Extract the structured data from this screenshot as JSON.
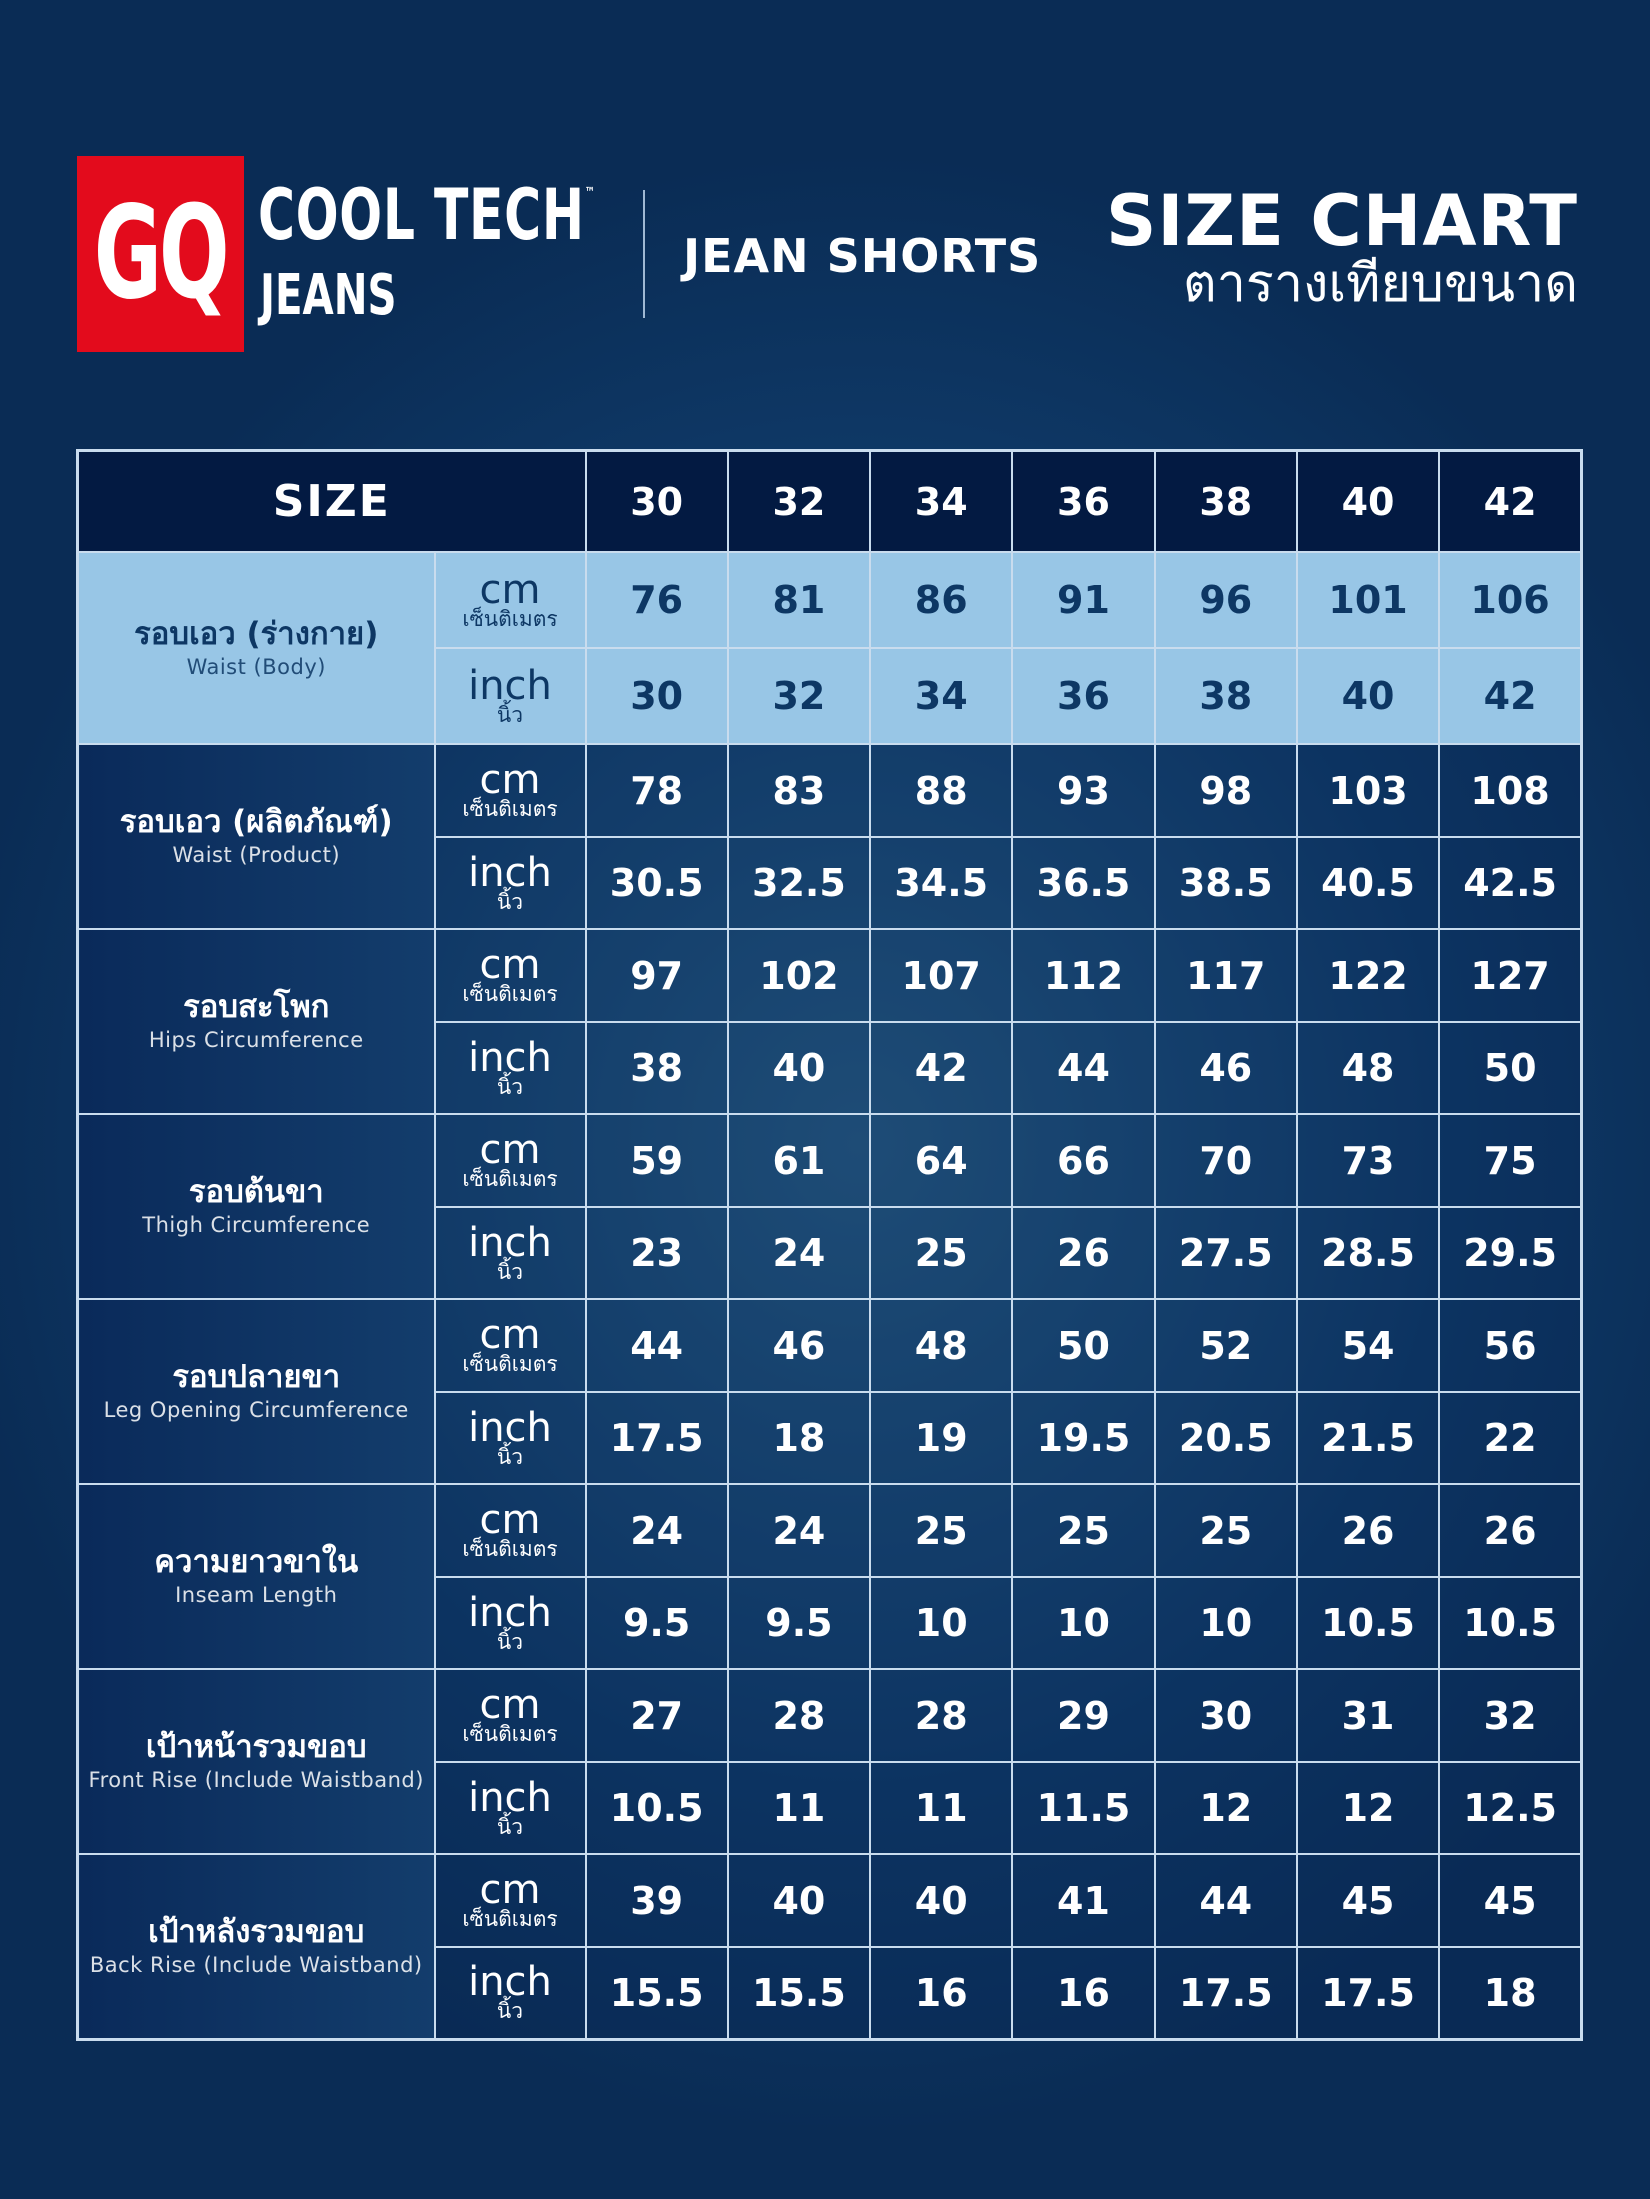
{
  "header": {
    "logo": {
      "text": "GQ",
      "bg_color": "#e30b1c"
    },
    "brand": {
      "name": "COOL TECH",
      "trademark": "™",
      "sub": "JEANS"
    },
    "product": "JEAN SHORTS",
    "title": "SIZE CHART",
    "subtitle_th": "ตารางเทียบขนาด"
  },
  "colors": {
    "background": "#0f3a68",
    "header_row": "#031a42",
    "highlight_row": "#98c6e6",
    "highlight_text": "#0d3764",
    "grid": "#c9dcee"
  },
  "chart_data": {
    "type": "table",
    "title": "SIZE CHART",
    "subtitle": "ตารางเทียบขนาด",
    "product": "JEAN SHORTS",
    "header_label": "SIZE",
    "sizes": [
      "30",
      "32",
      "34",
      "36",
      "38",
      "40",
      "42"
    ],
    "units": {
      "cm": {
        "en": "cm",
        "th": "เซ็นติเมตร"
      },
      "inch": {
        "en": "inch",
        "th": "นิ้ว"
      }
    },
    "measurements": [
      {
        "th": "รอบเอว (ร่างกาย)",
        "en": "Waist (Body)",
        "highlight": true,
        "cm": [
          "76",
          "81",
          "86",
          "91",
          "96",
          "101",
          "106"
        ],
        "inch": [
          "30",
          "32",
          "34",
          "36",
          "38",
          "40",
          "42"
        ]
      },
      {
        "th": "รอบเอว (ผลิตภัณฑ์)",
        "en": "Waist (Product)",
        "highlight": false,
        "cm": [
          "78",
          "83",
          "88",
          "93",
          "98",
          "103",
          "108"
        ],
        "inch": [
          "30.5",
          "32.5",
          "34.5",
          "36.5",
          "38.5",
          "40.5",
          "42.5"
        ]
      },
      {
        "th": "รอบสะโพก",
        "en": "Hips Circumference",
        "highlight": false,
        "cm": [
          "97",
          "102",
          "107",
          "112",
          "117",
          "122",
          "127"
        ],
        "inch": [
          "38",
          "40",
          "42",
          "44",
          "46",
          "48",
          "50"
        ]
      },
      {
        "th": "รอบต้นขา",
        "en": "Thigh Circumference",
        "highlight": false,
        "cm": [
          "59",
          "61",
          "64",
          "66",
          "70",
          "73",
          "75"
        ],
        "inch": [
          "23",
          "24",
          "25",
          "26",
          "27.5",
          "28.5",
          "29.5"
        ]
      },
      {
        "th": "รอบปลายขา",
        "en": "Leg Opening Circumference",
        "highlight": false,
        "cm": [
          "44",
          "46",
          "48",
          "50",
          "52",
          "54",
          "56"
        ],
        "inch": [
          "17.5",
          "18",
          "19",
          "19.5",
          "20.5",
          "21.5",
          "22"
        ]
      },
      {
        "th": "ความยาวขาใน",
        "en": "Inseam Length",
        "highlight": false,
        "cm": [
          "24",
          "24",
          "25",
          "25",
          "25",
          "26",
          "26"
        ],
        "inch": [
          "9.5",
          "9.5",
          "10",
          "10",
          "10",
          "10.5",
          "10.5"
        ]
      },
      {
        "th": "เป้าหน้ารวมขอบ",
        "en": "Front Rise (Include Waistband)",
        "highlight": false,
        "cm": [
          "27",
          "28",
          "28",
          "29",
          "30",
          "31",
          "32"
        ],
        "inch": [
          "10.5",
          "11",
          "11",
          "11.5",
          "12",
          "12",
          "12.5"
        ]
      },
      {
        "th": "เป้าหลังรวมขอบ",
        "en": "Back Rise (Include Waistband)",
        "highlight": false,
        "cm": [
          "39",
          "40",
          "40",
          "41",
          "44",
          "45",
          "45"
        ],
        "inch": [
          "15.5",
          "15.5",
          "16",
          "16",
          "17.5",
          "17.5",
          "18"
        ]
      }
    ]
  }
}
